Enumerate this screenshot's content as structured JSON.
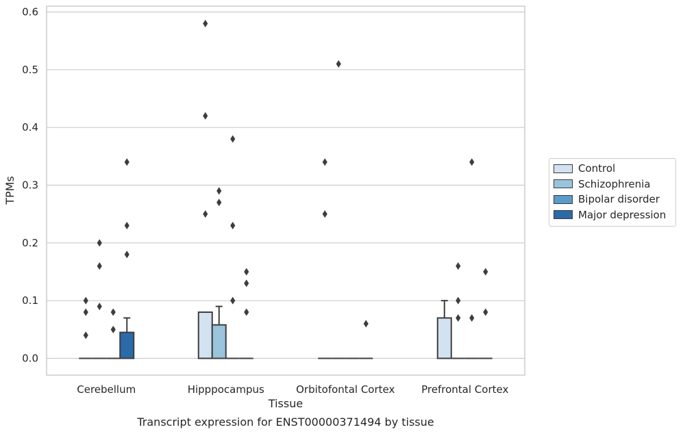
{
  "chart_data": {
    "type": "box",
    "title": "Transcript expression for ENST00000371494 by tissue",
    "xlabel": "Tissue",
    "ylabel": "TPMs",
    "ylim": [
      -0.028,
      0.61
    ],
    "yticks": [
      0.0,
      0.1,
      0.2,
      0.3,
      0.4,
      0.5,
      0.6
    ],
    "ytick_labels": [
      "0.0",
      "0.1",
      "0.2",
      "0.3",
      "0.4",
      "0.5",
      "0.6"
    ],
    "grid": "horizontal",
    "legend_position": "right",
    "categories": [
      "Cerebellum",
      "Hipppocampus",
      "Orbitofontal Cortex",
      "Prefrontal Cortex"
    ],
    "series": [
      {
        "name": "Control",
        "color": "#d3e2f1",
        "boxes": [
          {
            "q1": 0,
            "median": 0,
            "q3": 0,
            "whisker_low": 0,
            "whisker_high": 0,
            "outliers": [
              0.1,
              0.08,
              0.04
            ]
          },
          {
            "q1": 0,
            "median": 0,
            "q3": 0.08,
            "whisker_low": 0,
            "whisker_high": 0.08,
            "outliers": [
              0.58,
              0.42,
              0.25
            ]
          },
          {
            "q1": 0,
            "median": 0,
            "q3": 0,
            "whisker_low": 0,
            "whisker_high": 0,
            "outliers": [
              0.34,
              0.25
            ]
          },
          {
            "q1": 0,
            "median": 0,
            "q3": 0.07,
            "whisker_low": 0,
            "whisker_high": 0.1,
            "outliers": []
          }
        ]
      },
      {
        "name": "Schizophrenia",
        "color": "#9ac3dc",
        "boxes": [
          {
            "q1": 0,
            "median": 0,
            "q3": 0,
            "whisker_low": 0,
            "whisker_high": 0,
            "outliers": [
              0.2,
              0.16,
              0.09
            ]
          },
          {
            "q1": 0,
            "median": 0,
            "q3": 0.058,
            "whisker_low": 0,
            "whisker_high": 0.09,
            "outliers": [
              0.29,
              0.27
            ]
          },
          {
            "q1": 0,
            "median": 0,
            "q3": 0,
            "whisker_low": 0,
            "whisker_high": 0,
            "outliers": [
              0.51
            ]
          },
          {
            "q1": 0,
            "median": 0,
            "q3": 0,
            "whisker_low": 0,
            "whisker_high": 0,
            "outliers": [
              0.16,
              0.1,
              0.07
            ]
          }
        ]
      },
      {
        "name": "Bipolar disorder",
        "color": "#5a9bc9",
        "boxes": [
          {
            "q1": 0,
            "median": 0,
            "q3": 0,
            "whisker_low": 0,
            "whisker_high": 0,
            "outliers": [
              0.08,
              0.05
            ]
          },
          {
            "q1": 0,
            "median": 0,
            "q3": 0,
            "whisker_low": 0,
            "whisker_high": 0,
            "outliers": [
              0.38,
              0.23,
              0.1
            ]
          },
          {
            "q1": 0,
            "median": 0,
            "q3": 0,
            "whisker_low": 0,
            "whisker_high": 0,
            "outliers": []
          },
          {
            "q1": 0,
            "median": 0,
            "q3": 0,
            "whisker_low": 0,
            "whisker_high": 0,
            "outliers": [
              0.34,
              0.07
            ]
          }
        ]
      },
      {
        "name": "Major depression",
        "color": "#2a6aa9",
        "boxes": [
          {
            "q1": 0,
            "median": 0,
            "q3": 0.045,
            "whisker_low": 0,
            "whisker_high": 0.07,
            "outliers": [
              0.34,
              0.23,
              0.18
            ]
          },
          {
            "q1": 0,
            "median": 0,
            "q3": 0,
            "whisker_low": 0,
            "whisker_high": 0,
            "outliers": [
              0.15,
              0.13,
              0.08
            ]
          },
          {
            "q1": 0,
            "median": 0,
            "q3": 0,
            "whisker_low": 0,
            "whisker_high": 0,
            "outliers": [
              0.06
            ]
          },
          {
            "q1": 0,
            "median": 0,
            "q3": 0,
            "whisker_low": 0,
            "whisker_high": 0,
            "outliers": [
              0.15,
              0.08
            ]
          }
        ]
      }
    ]
  }
}
